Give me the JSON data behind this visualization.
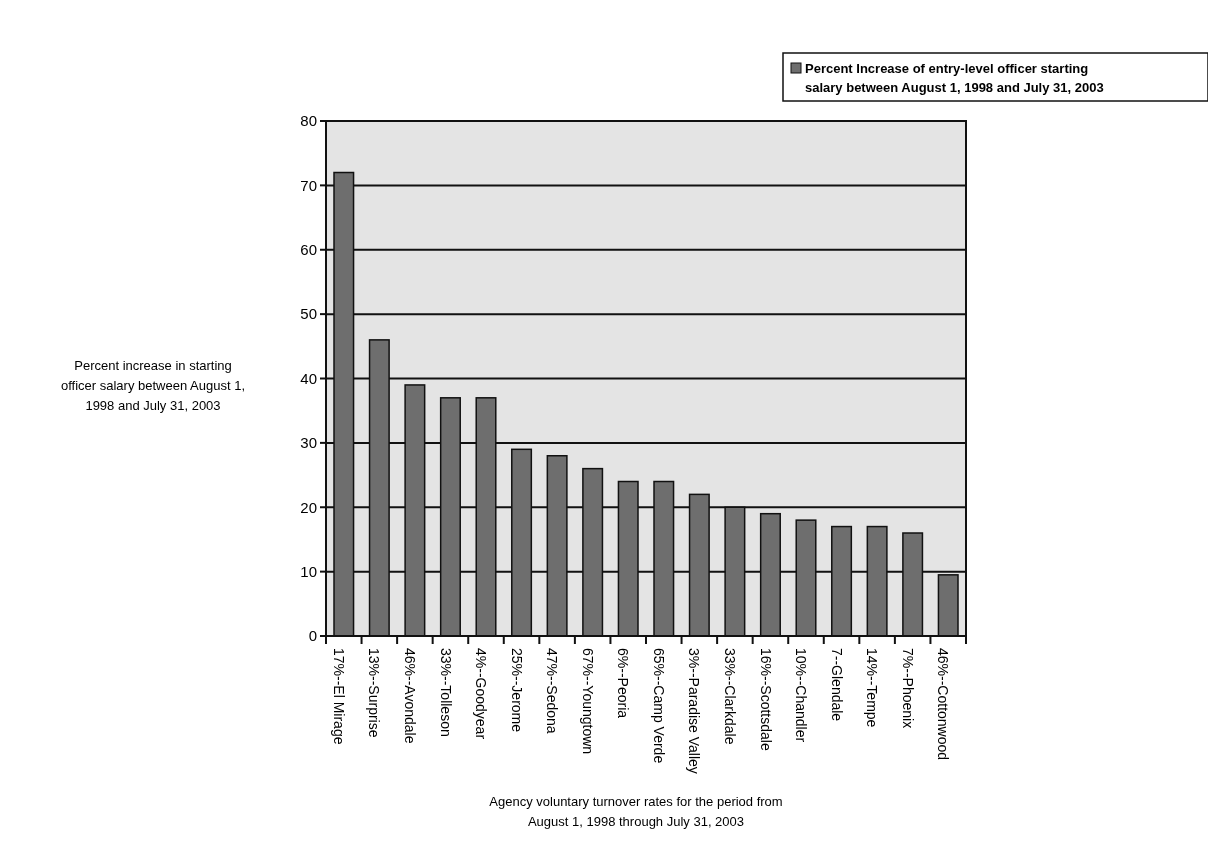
{
  "chart_data": {
    "type": "bar",
    "xlabel": "Agency voluntary turnover rates for the period from\nAugust 1, 1998 through July 31, 2003",
    "ylabel": "Percent increase in starting\nofficer salary between August 1,\n1998 and July 31, 2003",
    "categories": [
      "17%--El Mirage",
      "13%--Surprise",
      "46%--Avondale",
      "33%--Tolleson",
      "4%--Goodyear",
      "25%--Jerome",
      "47%--Sedona",
      "67%--Youngtown",
      "6%--Peoria",
      "65%--Camp Verde",
      "3%--Paradise Valley",
      "33%--Clarkdale",
      "16%--Scottsdale",
      "10%--Chandler",
      "7--Glendale",
      "14%--Tempe",
      "7%--Phoenix",
      "46%--Cottonwood"
    ],
    "series": [
      {
        "name": "Percent Increase of entry-level officer starting\nsalary between August 1, 1998 and July 31, 2003",
        "color": "#6e6e6e",
        "values": [
          72,
          46,
          39,
          37,
          37,
          29,
          28,
          26,
          24,
          24,
          22,
          20,
          19,
          18,
          17,
          17,
          16,
          9.5
        ]
      }
    ],
    "ylim": [
      0,
      80
    ],
    "yticks": [
      0,
      10,
      20,
      30,
      40,
      50,
      60,
      70,
      80
    ],
    "grid": "y",
    "legend": "top right"
  }
}
